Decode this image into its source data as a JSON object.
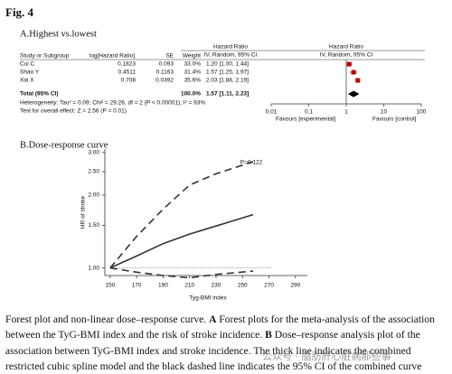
{
  "figure_label": "Fig. 4",
  "forest": {
    "title": "A.Highest vs.lowest",
    "columns": [
      "Study or Subgroup",
      "log[Hazard Ratio]",
      "SE",
      "Weight"
    ],
    "effect_header": [
      "Hazard Ratio",
      "IV, Random, 95% CI"
    ],
    "plot_header": [
      "Hazard Ratio",
      "IV, Random, 95% CI"
    ],
    "rows": [
      [
        "Cui C",
        "0.1823",
        "0.093",
        "33.0%",
        "1.20 [1.00, 1.44]"
      ],
      [
        "Shao Y",
        "0.4511",
        "0.1163",
        "31.4%",
        "1.57 [1.25, 1.97]"
      ],
      [
        "Xia X",
        "0.708",
        "0.0392",
        "35.6%",
        "2.03 [1.88, 2.19]"
      ]
    ],
    "points": [
      {
        "hr": 1.2,
        "lo": 1.0,
        "hi": 1.44
      },
      {
        "hr": 1.57,
        "lo": 1.25,
        "hi": 1.97
      },
      {
        "hr": 2.03,
        "lo": 1.88,
        "hi": 2.19
      }
    ],
    "total": {
      "label": "Total (95% CI)",
      "weight": "100.0%",
      "ci": "1.57 [1.11, 2.23]",
      "hr": 1.57,
      "lo": 1.11,
      "hi": 2.23
    },
    "heterogeneity": "Heterogeneity: Tau² = 0.09; Chi² = 29.26, df = 2 (P < 0.00001); I² = 93%",
    "overall": "Test for overall effect: Z = 2.56 (P = 0.01)",
    "xlim": [
      0.01,
      100
    ],
    "xticks": [
      0.01,
      0.1,
      1,
      10,
      100
    ],
    "log": true,
    "favours": [
      "Favours [experimental]",
      "Favours [control]"
    ],
    "color": "#c00000"
  },
  "chart_data": {
    "type": "line",
    "title": "B.Dose-response curve",
    "annotation": "P=0.122",
    "xlabel": "Tyg-BMI index",
    "ylabel": "HR of stroke",
    "x": [
      150,
      170,
      190,
      210,
      230,
      258
    ],
    "series": [
      {
        "color": "#333333",
        "dash": "none",
        "values": [
          1.0,
          1.12,
          1.26,
          1.38,
          1.49,
          1.66
        ]
      },
      {
        "color": "#333333",
        "dash": "8,5",
        "values": [
          1.0,
          1.35,
          1.75,
          2.2,
          2.45,
          2.75
        ]
      },
      {
        "color": "#333333",
        "dash": "8,5",
        "values": [
          1.0,
          0.96,
          0.93,
          0.91,
          0.94,
          0.97
        ]
      }
    ],
    "reference_line": 1.0,
    "reference_color": "#bbbbbb",
    "xlim": [
      146,
      299
    ],
    "xticks": [
      150,
      170,
      190,
      210,
      230,
      250,
      270,
      290
    ],
    "ylim": [
      0.93,
      3.1
    ],
    "ylog": true,
    "yticks": [
      {
        "value": 1,
        "label": "1.00"
      },
      {
        "value": 1.5,
        "label": "1.50"
      },
      {
        "value": 2,
        "label": "2.00"
      },
      {
        "value": 2.5,
        "label": "2.50"
      },
      {
        "value": 3,
        "label": "3.00"
      }
    ]
  },
  "caption": [
    {
      "text": "Forest plot and non-linear dose–response curve. ",
      "bold": false
    },
    {
      "text": "A",
      "bold": true
    },
    {
      "text": " Forest plots for the meta-analysis of the association between the TyG-BMI index and the risk of stroke incidence. ",
      "bold": false
    },
    {
      "text": "B",
      "bold": true
    },
    {
      "text": " Dose–response analysis plot of the association between TyG-BMI index and stroke incidence. The thick line indicates the combined restricted cubic spline model and the black dashed line indicates the 95% CI of the combined curve",
      "bold": false
    }
  ],
  "watermark": "公众号 · 脂肪肝心脏病那些事"
}
